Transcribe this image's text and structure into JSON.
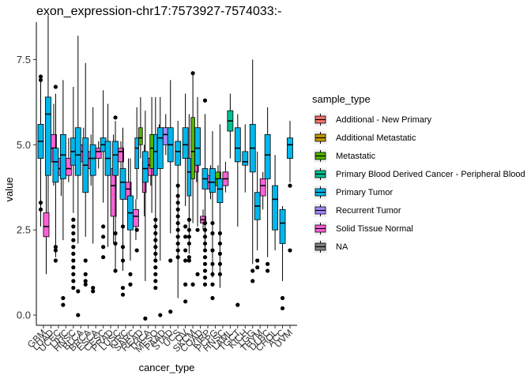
{
  "chart_data": {
    "type": "boxplot",
    "title": "exon_expression-chr17:7573927-7574033:-",
    "xlabel": "cancer_type",
    "ylabel": "value",
    "ylim": [
      -0.3,
      8.6
    ],
    "yticks": [
      0.0,
      2.5,
      5.0,
      7.5
    ],
    "ytick_labels": [
      "0.0",
      "2.5",
      "5.0",
      "7.5"
    ],
    "grid": false,
    "legend_position": "right",
    "legend_title": "sample_type",
    "legend": [
      {
        "name": "Additional - New Primary",
        "color": "#F8766D"
      },
      {
        "name": "Additional Metastatic",
        "color": "#C49A00"
      },
      {
        "name": "Metastatic",
        "color": "#53B400"
      },
      {
        "name": "Primary Blood Derived Cancer - Peripheral Blood",
        "color": "#00C094"
      },
      {
        "name": "Primary Tumor",
        "color": "#00B6EB"
      },
      {
        "name": "Recurrent Tumor",
        "color": "#A58AFF"
      },
      {
        "name": "Solid Tissue Normal",
        "color": "#FB61D7"
      },
      {
        "name": "NA",
        "color": "#7F7F7F"
      }
    ],
    "categories": [
      "GBM",
      "LUAD",
      "UCEC",
      "LIHC",
      "HNSC",
      "BLCA",
      "BRCA",
      "ESCA",
      "CESC",
      "PRAD",
      "LUSC",
      "KIRC",
      "SARC",
      "READ",
      "THCA",
      "MESO",
      "PAAD",
      "STAD",
      "UCS",
      "OV",
      "SKCM",
      "COAD",
      "KIRP",
      "PCPG",
      "HNSC2",
      "LAML",
      "TGCT",
      "KICH",
      "LGG",
      "THYM",
      "DLBC",
      "CHOL",
      "ACC",
      "UVM"
    ],
    "boxes": [
      {
        "category": "GBM",
        "type": "Primary Tumor",
        "min": 2.6,
        "q1": 4.6,
        "median": 5.1,
        "q3": 5.6,
        "max": 6.9,
        "outliers": [
          7.0,
          6.9,
          3.3,
          3.1
        ]
      },
      {
        "category": "GBM",
        "type": "Solid Tissue Normal",
        "min": 1.2,
        "q1": 2.3,
        "median": 2.6,
        "q3": 3.0,
        "max": 4.5,
        "outliers": []
      },
      {
        "category": "LUAD",
        "type": "Primary Tumor",
        "min": 3.0,
        "q1": 4.1,
        "median": 5.9,
        "q3": 6.4,
        "max": 8.8,
        "outliers": []
      },
      {
        "category": "LUAD",
        "type": "Solid Tissue Normal",
        "min": 3.8,
        "q1": 4.5,
        "median": 4.9,
        "q3": 5.3,
        "max": 6.2,
        "outliers": []
      },
      {
        "category": "UCEC",
        "type": "Primary Tumor",
        "min": 1.7,
        "q1": 3.9,
        "median": 4.5,
        "q3": 4.9,
        "max": 6.5,
        "outliers": [
          6.7,
          1.9,
          1.6,
          2.0
        ]
      },
      {
        "category": "UCEC",
        "type": "Solid Tissue Normal",
        "min": 3.5,
        "q1": 4.1,
        "median": 4.3,
        "q3": 4.6,
        "max": 5.3,
        "outliers": []
      },
      {
        "category": "LIHC",
        "type": "Primary Tumor",
        "min": 2.2,
        "q1": 4.0,
        "median": 4.7,
        "q3": 5.3,
        "max": 6.9,
        "outliers": [
          0.5,
          0.3
        ]
      },
      {
        "category": "LIHC",
        "type": "Solid Tissue Normal",
        "min": 3.9,
        "q1": 4.1,
        "median": 4.3,
        "q3": 4.6,
        "max": 5.2,
        "outliers": []
      },
      {
        "category": "HNSC",
        "type": "Primary Tumor",
        "min": 3.0,
        "q1": 4.4,
        "median": 4.8,
        "q3": 5.2,
        "max": 6.7,
        "outliers": [
          2.8,
          2.6,
          2.4,
          2.2,
          2.0,
          1.8,
          1.6,
          1.4,
          1.2,
          1.0,
          0.8
        ]
      },
      {
        "category": "BLCA",
        "type": "Primary Tumor",
        "min": 2.1,
        "q1": 4.1,
        "median": 4.7,
        "q3": 5.5,
        "max": 8.2,
        "outliers": [
          0.0,
          0.7
        ]
      },
      {
        "category": "BLCA",
        "type": "Solid Tissue Normal",
        "min": 3.9,
        "q1": 4.5,
        "median": 4.8,
        "q3": 5.0,
        "max": 5.5,
        "outliers": []
      },
      {
        "category": "BRCA",
        "type": "Primary Tumor",
        "min": 2.3,
        "q1": 3.6,
        "median": 4.4,
        "q3": 5.2,
        "max": 7.4,
        "outliers": [
          1.6,
          1.2,
          1.0,
          0.9
        ]
      },
      {
        "category": "BRCA",
        "type": "Solid Tissue Normal",
        "min": 3.8,
        "q1": 4.3,
        "median": 4.6,
        "q3": 4.8,
        "max": 5.3,
        "outliers": []
      },
      {
        "category": "ESCA",
        "type": "Primary Tumor",
        "min": 2.1,
        "q1": 4.1,
        "median": 4.6,
        "q3": 5.0,
        "max": 6.1,
        "outliers": [
          0.8,
          0.7
        ]
      },
      {
        "category": "ESCA",
        "type": "Solid Tissue Normal",
        "min": 4.3,
        "q1": 4.6,
        "median": 4.8,
        "q3": 4.9,
        "max": 5.1,
        "outliers": []
      },
      {
        "category": "CESC",
        "type": "Primary Tumor",
        "min": 3.3,
        "q1": 4.8,
        "median": 5.0,
        "q3": 5.2,
        "max": 6.6,
        "outliers": [
          2.6,
          2.3,
          2.0,
          1.7
        ]
      },
      {
        "category": "PRAD",
        "type": "Primary Tumor",
        "min": 2.0,
        "q1": 4.1,
        "median": 4.6,
        "q3": 5.1,
        "max": 6.2,
        "outliers": []
      },
      {
        "category": "PRAD",
        "type": "Solid Tissue Normal",
        "min": 2.1,
        "q1": 2.9,
        "median": 3.8,
        "q3": 4.3,
        "max": 5.3,
        "outliers": []
      },
      {
        "category": "LUSC",
        "type": "Primary Tumor",
        "min": 1.3,
        "q1": 4.1,
        "median": 4.7,
        "q3": 5.1,
        "max": 5.7,
        "outliers": [
          5.8,
          2.4,
          2.1,
          1.3
        ]
      },
      {
        "category": "LUSC",
        "type": "Solid Tissue Normal",
        "min": 4.0,
        "q1": 4.5,
        "median": 4.8,
        "q3": 4.9,
        "max": 5.1,
        "outliers": []
      },
      {
        "category": "KIRC",
        "type": "Primary Tumor",
        "min": 1.3,
        "q1": 3.4,
        "median": 3.9,
        "q3": 4.3,
        "max": 5.5,
        "outliers": [
          2.6,
          2.0,
          1.6,
          0.8,
          0.6
        ]
      },
      {
        "category": "KIRC",
        "type": "Solid Tissue Normal",
        "min": 2.8,
        "q1": 3.4,
        "median": 3.7,
        "q3": 3.9,
        "max": 4.6,
        "outliers": []
      },
      {
        "category": "SARC",
        "type": "Primary Tumor",
        "min": 1.6,
        "q1": 2.5,
        "median": 3.0,
        "q3": 3.5,
        "max": 4.6,
        "outliers": [
          1.2,
          0.9
        ]
      },
      {
        "category": "SARC",
        "type": "Solid Tissue Normal",
        "min": 2.2,
        "q1": 2.6,
        "median": 2.9,
        "q3": 3.1,
        "max": 3.4,
        "outliers": []
      },
      {
        "category": "READ",
        "type": "Primary Tumor",
        "min": 3.4,
        "q1": 4.3,
        "median": 4.9,
        "q3": 5.2,
        "max": 6.1,
        "outliers": [
          2.5,
          1.9
        ]
      },
      {
        "category": "READ",
        "type": "Metastatic",
        "min": 4.6,
        "q1": 5.0,
        "median": 5.2,
        "q3": 5.5,
        "max": 6.4,
        "outliers": []
      },
      {
        "category": "READ",
        "type": "Solid Tissue Normal",
        "min": 2.9,
        "q1": 3.6,
        "median": 4.1,
        "q3": 4.5,
        "max": 5.0,
        "outliers": []
      },
      {
        "category": "THCA",
        "type": "Primary Tumor",
        "min": 1.0,
        "q1": 3.9,
        "median": 4.3,
        "q3": 4.8,
        "max": 6.0,
        "outliers": [
          -0.1
        ]
      },
      {
        "category": "THCA",
        "type": "Solid Tissue Normal",
        "min": 3.8,
        "q1": 4.1,
        "median": 4.4,
        "q3": 4.6,
        "max": 5.0,
        "outliers": []
      },
      {
        "category": "MESO",
        "type": "Metastatic",
        "min": 3.0,
        "q1": 4.3,
        "median": 4.9,
        "q3": 5.3,
        "max": 6.4,
        "outliers": []
      },
      {
        "category": "MESO",
        "type": "Primary Tumor",
        "min": 1.6,
        "q1": 4.1,
        "median": 4.8,
        "q3": 5.3,
        "max": 6.4,
        "outliers": [
          2.8,
          2.6,
          2.4,
          2.2,
          2.0,
          1.8,
          1.6,
          1.4,
          1.2,
          1.0,
          0.8
        ]
      },
      {
        "category": "MESO",
        "type": "Solid Tissue Normal",
        "min": 4.5,
        "q1": 4.8,
        "median": 5.0,
        "q3": 5.2,
        "max": 5.6,
        "outliers": []
      },
      {
        "category": "PAAD",
        "type": "Primary Tumor",
        "min": 1.6,
        "q1": 4.3,
        "median": 5.2,
        "q3": 5.5,
        "max": 6.4,
        "outliers": [
          0.0
        ]
      },
      {
        "category": "PAAD",
        "type": "Recurrent Tumor",
        "min": 4.7,
        "q1": 5.0,
        "median": 5.3,
        "q3": 5.5,
        "max": 5.9,
        "outliers": []
      },
      {
        "category": "STAD",
        "type": "Primary Tumor",
        "min": 2.4,
        "q1": 4.5,
        "median": 5.0,
        "q3": 5.5,
        "max": 6.9,
        "outliers": [
          1.6,
          0.1
        ]
      },
      {
        "category": "UCS",
        "type": "Primary Tumor",
        "min": 0.5,
        "q1": 4.4,
        "median": 4.8,
        "q3": 5.1,
        "max": 5.7,
        "outliers": [
          3.8,
          3.5,
          3.3,
          3.1,
          2.9,
          2.7,
          2.5,
          2.3,
          2.1,
          1.9,
          1.7
        ]
      },
      {
        "category": "OV",
        "type": "Primary Tumor",
        "min": 3.2,
        "q1": 4.6,
        "median": 5.0,
        "q3": 5.5,
        "max": 6.5,
        "outliers": [
          2.6,
          2.3,
          1.9,
          1.6,
          0.9,
          0.4
        ]
      },
      {
        "category": "SKCM",
        "type": "Primary Tumor",
        "min": 1.8,
        "q1": 3.5,
        "median": 4.2,
        "q3": 4.6,
        "max": 5.9,
        "outliers": [
          2.8,
          2.5,
          2.3,
          2.1,
          1.7,
          1.6
        ]
      },
      {
        "category": "SKCM",
        "type": "Metastatic",
        "min": 2.7,
        "q1": 4.0,
        "median": 4.8,
        "q3": 5.8,
        "max": 7.1,
        "outliers": [
          7.1,
          0.9
        ]
      },
      {
        "category": "SKCM",
        "type": "Solid Tissue Normal",
        "min": 3.9,
        "q1": 4.2,
        "median": 4.5,
        "q3": 4.8,
        "max": 5.1,
        "outliers": []
      },
      {
        "category": "COAD",
        "type": "Primary Tumor",
        "min": 2.6,
        "q1": 4.4,
        "median": 4.9,
        "q3": 5.5,
        "max": 6.4,
        "outliers": [
          2.5,
          1.2
        ]
      },
      {
        "category": "COAD",
        "type": "Solid Tissue Normal",
        "min": 2.5,
        "q1": 2.7,
        "median": 2.8,
        "q3": 2.9,
        "max": 3.1,
        "outliers": []
      },
      {
        "category": "KIRP",
        "type": "Primary Tumor",
        "min": 1.9,
        "q1": 3.7,
        "median": 4.0,
        "q3": 4.3,
        "max": 5.9,
        "outliers": [
          6.3,
          2.7,
          2.5,
          2.3,
          2.1,
          1.9,
          1.7,
          1.5,
          1.3,
          1.1,
          0.9
        ]
      },
      {
        "category": "KIRP",
        "type": "Solid Tissue Normal",
        "min": 3.4,
        "q1": 3.7,
        "median": 3.9,
        "q3": 4.1,
        "max": 4.4,
        "outliers": []
      },
      {
        "category": "PCPG",
        "type": "Primary Tumor",
        "min": 1.1,
        "q1": 3.6,
        "median": 3.9,
        "q3": 4.3,
        "max": 5.4,
        "outliers": [
          2.7,
          2.4,
          1.9,
          1.5,
          1.2,
          0.9,
          0.5
        ]
      },
      {
        "category": "PCPG",
        "type": "Metastatic",
        "min": 3.6,
        "q1": 3.8,
        "median": 4.0,
        "q3": 4.2,
        "max": 4.4,
        "outliers": []
      },
      {
        "category": "HNSC2",
        "type": "Primary Tumor",
        "min": 0.8,
        "q1": 3.3,
        "median": 3.7,
        "q3": 4.0,
        "max": 5.6,
        "outliers": [
          2.4,
          2.1,
          1.8,
          1.5,
          1.2
        ]
      },
      {
        "category": "HNSC2",
        "type": "Solid Tissue Normal",
        "min": 3.6,
        "q1": 3.8,
        "median": 4.0,
        "q3": 4.2,
        "max": 4.5,
        "outliers": []
      },
      {
        "category": "LAML",
        "type": "Primary Blood Derived Cancer - Peripheral Blood",
        "min": 4.6,
        "q1": 5.4,
        "median": 5.7,
        "q3": 6.0,
        "max": 6.5,
        "outliers": []
      },
      {
        "category": "TGCT",
        "type": "Primary Tumor",
        "min": 2.6,
        "q1": 4.5,
        "median": 4.9,
        "q3": 5.5,
        "max": 5.9,
        "outliers": [
          0.3
        ]
      },
      {
        "category": "KICH",
        "type": "Primary Tumor",
        "min": 3.6,
        "q1": 4.4,
        "median": 4.5,
        "q3": 4.8,
        "max": 5.6,
        "outliers": []
      },
      {
        "category": "LGG",
        "type": "Primary Tumor",
        "min": 1.5,
        "q1": 4.2,
        "median": 4.9,
        "q3": 5.6,
        "max": 7.5,
        "outliers": [
          1.3,
          1.0
        ]
      },
      {
        "category": "THYM",
        "type": "Primary Tumor",
        "min": 1.9,
        "q1": 2.8,
        "median": 3.2,
        "q3": 3.6,
        "max": 4.8,
        "outliers": [
          1.6,
          1.4
        ]
      },
      {
        "category": "THYM",
        "type": "Solid Tissue Normal",
        "min": 3.1,
        "q1": 3.5,
        "median": 3.8,
        "q3": 4.0,
        "max": 4.2,
        "outliers": []
      },
      {
        "category": "DLBC",
        "type": "Primary Tumor",
        "min": 1.7,
        "q1": 4.0,
        "median": 4.7,
        "q3": 5.3,
        "max": 6.1,
        "outliers": [
          1.5,
          1.3
        ]
      },
      {
        "category": "CHOL",
        "type": "Primary Tumor",
        "min": 1.9,
        "q1": 2.5,
        "median": 3.4,
        "q3": 3.8,
        "max": 4.7,
        "outliers": []
      },
      {
        "category": "ACC",
        "type": "Primary Tumor",
        "min": 1.0,
        "q1": 2.1,
        "median": 2.7,
        "q3": 3.1,
        "max": 3.2,
        "outliers": [
          0.5,
          0.2
        ]
      },
      {
        "category": "UVM",
        "type": "Primary Tumor",
        "min": 3.9,
        "q1": 4.6,
        "median": 5.0,
        "q3": 5.2,
        "max": 5.7,
        "outliers": [
          3.8,
          1.9
        ]
      }
    ]
  }
}
